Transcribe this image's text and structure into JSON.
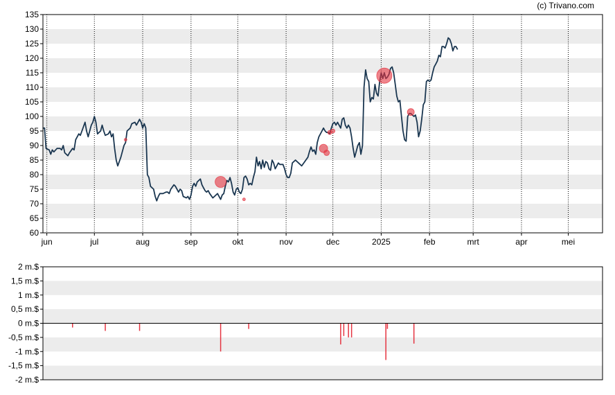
{
  "credit": "(c) Trivano.com",
  "colors": {
    "price": "#1a3650",
    "insider": "#e53340",
    "band": "#ececec",
    "axis": "#000000"
  },
  "chart_data": [
    {
      "type": "line",
      "title": "",
      "xlabel": "",
      "ylabel": "",
      "ylim": [
        60,
        135
      ],
      "yticks": [
        "135",
        "130",
        "125",
        "120",
        "115",
        "110",
        "105",
        "100",
        "95",
        "90",
        "85",
        "80",
        "75",
        "70",
        "65",
        "60"
      ],
      "month_ticks": [
        {
          "label": "jun",
          "x": 2.5
        },
        {
          "label": "jul",
          "x": 33
        },
        {
          "label": "aug",
          "x": 64
        },
        {
          "label": "sep",
          "x": 95
        },
        {
          "label": "okt",
          "x": 125
        },
        {
          "label": "nov",
          "x": 156
        },
        {
          "label": "dec",
          "x": 186
        },
        {
          "label": "2025",
          "x": 217
        },
        {
          "label": "feb",
          "x": 248
        },
        {
          "label": "mrt",
          "x": 276
        },
        {
          "label": "apr",
          "x": 307
        },
        {
          "label": "mei",
          "x": 337
        }
      ],
      "grid": "vertical dotted at month starts, alternating horizontal bands",
      "x_range": [
        0,
        359
      ],
      "series": [
        {
          "values": [
            [
              0,
              96
            ],
            [
              1,
              96
            ],
            [
              2,
              89
            ],
            [
              4,
              88.5
            ],
            [
              5,
              87
            ],
            [
              6,
              88.5
            ],
            [
              7,
              87.8
            ],
            [
              9,
              89
            ],
            [
              11,
              89
            ],
            [
              12,
              88.5
            ],
            [
              13,
              90
            ],
            [
              14,
              87.5
            ],
            [
              16,
              86.5
            ],
            [
              17,
              87.5
            ],
            [
              19,
              89
            ],
            [
              20,
              88.5
            ],
            [
              21,
              92
            ],
            [
              23,
              94
            ],
            [
              24,
              93.5
            ],
            [
              25,
              95
            ],
            [
              27,
              98
            ],
            [
              28,
              95
            ],
            [
              29,
              93
            ],
            [
              31,
              97
            ],
            [
              32,
              98
            ],
            [
              33,
              100
            ],
            [
              34,
              98
            ],
            [
              35,
              94
            ],
            [
              37,
              95
            ],
            [
              38,
              97
            ],
            [
              39,
              95
            ],
            [
              40,
              93.5
            ],
            [
              42,
              94
            ],
            [
              43,
              95
            ],
            [
              44,
              93
            ],
            [
              45,
              94
            ],
            [
              46,
              89
            ],
            [
              47,
              85
            ],
            [
              48,
              83
            ],
            [
              50,
              86
            ],
            [
              52,
              90
            ],
            [
              53,
              91
            ],
            [
              54,
              95
            ],
            [
              56,
              96
            ],
            [
              57,
              97.5
            ],
            [
              59,
              98
            ],
            [
              60,
              97
            ],
            [
              61,
              98
            ],
            [
              62,
              99
            ],
            [
              63,
              98
            ],
            [
              64,
              96
            ],
            [
              65,
              97.5
            ],
            [
              66,
              96
            ],
            [
              67,
              80
            ],
            [
              68,
              79
            ],
            [
              69,
              76
            ],
            [
              71,
              75
            ],
            [
              72,
              72.5
            ],
            [
              73,
              71
            ],
            [
              74,
              72.5
            ],
            [
              75,
              73.5
            ],
            [
              77,
              73.5
            ],
            [
              79,
              74
            ],
            [
              80,
              74
            ],
            [
              81,
              73.5
            ],
            [
              82,
              75
            ],
            [
              84,
              76.5
            ],
            [
              85,
              76
            ],
            [
              87,
              74
            ],
            [
              88,
              75
            ],
            [
              89,
              74.5
            ],
            [
              90,
              72.5
            ],
            [
              92,
              72
            ],
            [
              93,
              72.5
            ],
            [
              94,
              71.5
            ],
            [
              95,
              73
            ],
            [
              96,
              76
            ],
            [
              97,
              77
            ],
            [
              98,
              76
            ],
            [
              99,
              77.5
            ],
            [
              101,
              78.5
            ],
            [
              102,
              76.5
            ],
            [
              103,
              75.5
            ],
            [
              104,
              74.5
            ],
            [
              105,
              74
            ],
            [
              106,
              74.5
            ],
            [
              107,
              73.5
            ],
            [
              109,
              72
            ],
            [
              110,
              72.5
            ],
            [
              112,
              73.5
            ],
            [
              113,
              72.5
            ],
            [
              114,
              71.5
            ],
            [
              115,
              73
            ],
            [
              116,
              73.5
            ],
            [
              117,
              76
            ],
            [
              118,
              78
            ],
            [
              119,
              77.5
            ],
            [
              120,
              79
            ],
            [
              121,
              77
            ],
            [
              122,
              74
            ],
            [
              123,
              73
            ],
            [
              124,
              75
            ],
            [
              125,
              75.5
            ],
            [
              126,
              74
            ],
            [
              127,
              73.5
            ],
            [
              128,
              75
            ],
            [
              129,
              79
            ],
            [
              130,
              79.5
            ],
            [
              131,
              78.5
            ],
            [
              132,
              76.5
            ],
            [
              133,
              77
            ],
            [
              134,
              76.5
            ],
            [
              135,
              79
            ],
            [
              136,
              81
            ],
            [
              137,
              86
            ],
            [
              138,
              83
            ],
            [
              139,
              84.5
            ],
            [
              140,
              82
            ],
            [
              141,
              85
            ],
            [
              142,
              82.5
            ],
            [
              143,
              84.5
            ],
            [
              144,
              84
            ],
            [
              145,
              82
            ],
            [
              146,
              81.5
            ],
            [
              147,
              85
            ],
            [
              148,
              84
            ],
            [
              149,
              82
            ],
            [
              151,
              84
            ],
            [
              152,
              83.5
            ],
            [
              154,
              83.5
            ],
            [
              155,
              82
            ],
            [
              156,
              80
            ],
            [
              157,
              79
            ],
            [
              158,
              79
            ],
            [
              159,
              80.5
            ],
            [
              160,
              84
            ],
            [
              162,
              85
            ],
            [
              164,
              84
            ],
            [
              166,
              83
            ],
            [
              168,
              84.5
            ],
            [
              170,
              86
            ],
            [
              171,
              88
            ],
            [
              172,
              89.5
            ],
            [
              173,
              88
            ],
            [
              174,
              88.5
            ],
            [
              175,
              87
            ],
            [
              176,
              91
            ],
            [
              177,
              93
            ],
            [
              179,
              95
            ],
            [
              180,
              96
            ],
            [
              181,
              95
            ],
            [
              182,
              94.5
            ],
            [
              183,
              94.5
            ],
            [
              184,
              94
            ],
            [
              185,
              96
            ],
            [
              186,
              97.5
            ],
            [
              187,
              98
            ],
            [
              188,
              97
            ],
            [
              189,
              98
            ],
            [
              190,
              97
            ],
            [
              191,
              96
            ],
            [
              192,
              99
            ],
            [
              193,
              99.5
            ],
            [
              194,
              97
            ],
            [
              195,
              96
            ],
            [
              196,
              97
            ],
            [
              197,
              96
            ],
            [
              198,
              93
            ],
            [
              199,
              89
            ],
            [
              200,
              86
            ],
            [
              201,
              88
            ],
            [
              202,
              90
            ],
            [
              203,
              91
            ],
            [
              204,
              87
            ],
            [
              205,
              90
            ],
            [
              206,
              110
            ],
            [
              207,
              116
            ],
            [
              208,
              113
            ],
            [
              209,
              112
            ],
            [
              210,
              105
            ],
            [
              211,
              106.5
            ],
            [
              212,
              106
            ],
            [
              213,
              111
            ],
            [
              214,
              108
            ],
            [
              215,
              107
            ],
            [
              216,
              112
            ],
            [
              217,
              115
            ],
            [
              218,
              113
            ],
            [
              219,
              115
            ],
            [
              220,
              113
            ],
            [
              221,
              113.5
            ],
            [
              222,
              114.5
            ],
            [
              223,
              116.5
            ],
            [
              224,
              117
            ],
            [
              225,
              115
            ],
            [
              226,
              111
            ],
            [
              227,
              107
            ],
            [
              228,
              105
            ],
            [
              229,
              105.5
            ],
            [
              230,
              100
            ],
            [
              231,
              95
            ],
            [
              232,
              92
            ],
            [
              233,
              91.5
            ],
            [
              234,
              100
            ],
            [
              235,
              101
            ],
            [
              236,
              101
            ],
            [
              237,
              100.5
            ],
            [
              238,
              100
            ],
            [
              239,
              100.5
            ],
            [
              240,
              98
            ],
            [
              241,
              93
            ],
            [
              242,
              95
            ],
            [
              243,
              99
            ],
            [
              244,
              104
            ],
            [
              245,
              105
            ],
            [
              246,
              112
            ],
            [
              247,
              112.5
            ],
            [
              248,
              112
            ],
            [
              249,
              112.5
            ],
            [
              250,
              115
            ],
            [
              251,
              117
            ],
            [
              252,
              118
            ],
            [
              253,
              119
            ],
            [
              254,
              121
            ],
            [
              255,
              120.5
            ],
            [
              256,
              124
            ],
            [
              257,
              124
            ],
            [
              258,
              123.5
            ],
            [
              259,
              125
            ],
            [
              260,
              127
            ],
            [
              261,
              126.5
            ],
            [
              262,
              125
            ],
            [
              263,
              122.5
            ],
            [
              264,
              124
            ],
            [
              265,
              124
            ],
            [
              266,
              123
            ]
          ]
        }
      ],
      "markers": [
        {
          "x": 53,
          "y": 92,
          "r": 2
        },
        {
          "x": 114,
          "y": 77.5,
          "r": 8
        },
        {
          "x": 129,
          "y": 71.5,
          "r": 2
        },
        {
          "x": 180,
          "y": 89,
          "r": 6
        },
        {
          "x": 182,
          "y": 87.5,
          "r": 4
        },
        {
          "x": 184,
          "y": 94.5,
          "r": 3
        },
        {
          "x": 186,
          "y": 95,
          "r": 3
        },
        {
          "x": 219,
          "y": 114,
          "r": 11
        },
        {
          "x": 236,
          "y": 101.5,
          "r": 5
        }
      ]
    },
    {
      "type": "bar",
      "title": "",
      "xlabel": "",
      "ylabel": "",
      "ylim": [
        -2,
        2
      ],
      "yticks": [
        "2 m.$",
        "1,5 m.$",
        "1 m.$",
        "0,5 m.$",
        "0 m.$",
        "-0,5 m.$",
        "-1 m.$",
        "-1,5 m.$",
        "-2 m.$"
      ],
      "x_range": [
        0,
        359
      ],
      "values": [
        {
          "x": 19,
          "value": -0.15
        },
        {
          "x": 40,
          "value": -0.27
        },
        {
          "x": 62,
          "value": -0.27
        },
        {
          "x": 114,
          "value": -1.0
        },
        {
          "x": 132,
          "value": -0.2
        },
        {
          "x": 191,
          "value": -0.75
        },
        {
          "x": 193,
          "value": -0.45
        },
        {
          "x": 196,
          "value": -0.5
        },
        {
          "x": 198,
          "value": -0.5
        },
        {
          "x": 220,
          "value": -1.3
        },
        {
          "x": 221,
          "value": -0.2
        },
        {
          "x": 238,
          "value": -0.72
        }
      ]
    }
  ]
}
